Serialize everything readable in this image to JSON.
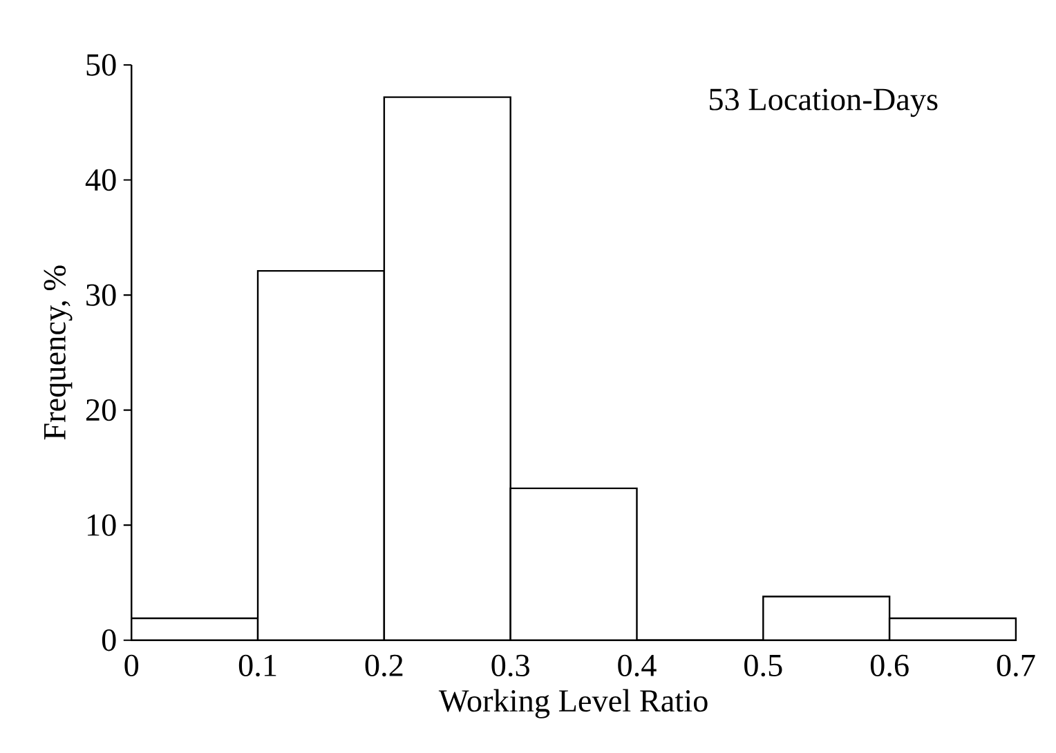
{
  "chart_data": {
    "type": "histogram",
    "xlabel": "Working Level Ratio",
    "ylabel": "Frequency, %",
    "annotations": [
      "53 Location-Days"
    ],
    "bins": [
      0,
      0.1,
      0.2,
      0.3,
      0.4,
      0.5,
      0.6,
      0.7
    ],
    "values": [
      1.9,
      32.1,
      47.2,
      13.2,
      0,
      3.8,
      1.9
    ],
    "color": "#000000",
    "xlim": [
      0,
      0.7
    ],
    "ylim": [
      0,
      50
    ],
    "xticks": [
      0,
      0.1,
      0.2,
      0.3,
      0.4,
      0.5,
      0.6,
      0.7
    ],
    "yticks": [
      0,
      10,
      20,
      30,
      40,
      50
    ],
    "grid": false
  }
}
